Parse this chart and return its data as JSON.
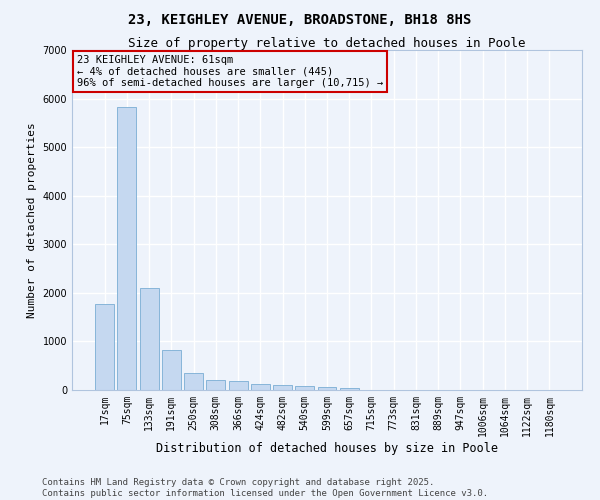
{
  "title": "23, KEIGHLEY AVENUE, BROADSTONE, BH18 8HS",
  "subtitle": "Size of property relative to detached houses in Poole",
  "xlabel": "Distribution of detached houses by size in Poole",
  "ylabel": "Number of detached properties",
  "categories": [
    "17sqm",
    "75sqm",
    "133sqm",
    "191sqm",
    "250sqm",
    "308sqm",
    "366sqm",
    "424sqm",
    "482sqm",
    "540sqm",
    "599sqm",
    "657sqm",
    "715sqm",
    "773sqm",
    "831sqm",
    "889sqm",
    "947sqm",
    "1006sqm",
    "1064sqm",
    "1122sqm",
    "1180sqm"
  ],
  "values": [
    1780,
    5820,
    2090,
    820,
    360,
    215,
    180,
    120,
    100,
    90,
    65,
    45,
    0,
    0,
    0,
    0,
    0,
    0,
    0,
    0,
    0
  ],
  "bar_color": "#c5d8f0",
  "bar_edge_color": "#7aadd4",
  "annotation_box_color": "#cc0000",
  "annotation_text": "23 KEIGHLEY AVENUE: 61sqm\n← 4% of detached houses are smaller (445)\n96% of semi-detached houses are larger (10,715) →",
  "annotation_fontsize": 7.5,
  "background_color": "#eef3fb",
  "grid_color": "#ffffff",
  "ylim": [
    0,
    7000
  ],
  "yticks": [
    0,
    1000,
    2000,
    3000,
    4000,
    5000,
    6000,
    7000
  ],
  "title_fontsize": 10,
  "subtitle_fontsize": 9,
  "xlabel_fontsize": 8.5,
  "ylabel_fontsize": 8,
  "tick_fontsize": 7,
  "footer_line1": "Contains HM Land Registry data © Crown copyright and database right 2025.",
  "footer_line2": "Contains public sector information licensed under the Open Government Licence v3.0.",
  "footer_fontsize": 6.5
}
